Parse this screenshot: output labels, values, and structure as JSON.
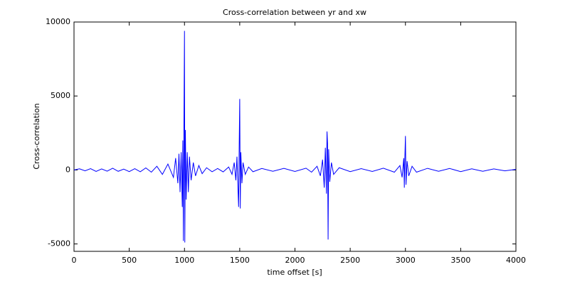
{
  "chart_data": {
    "type": "line",
    "title": "Cross-correlation between yr and xw",
    "x_label": "time offset [s]",
    "y_label": "Cross-correlation",
    "color": "#0000ff",
    "x": [
      0,
      50,
      100,
      150,
      200,
      250,
      300,
      350,
      400,
      450,
      500,
      550,
      600,
      650,
      700,
      750,
      800,
      850,
      900,
      920,
      940,
      950,
      960,
      970,
      980,
      985,
      990,
      995,
      1000,
      1003,
      1008,
      1015,
      1025,
      1035,
      1045,
      1060,
      1080,
      1100,
      1130,
      1160,
      1200,
      1250,
      1300,
      1350,
      1400,
      1430,
      1450,
      1465,
      1475,
      1485,
      1490,
      1495,
      1500,
      1505,
      1510,
      1520,
      1530,
      1550,
      1580,
      1620,
      1700,
      1800,
      1900,
      2000,
      2100,
      2150,
      2200,
      2230,
      2250,
      2265,
      2275,
      2285,
      2290,
      2295,
      2300,
      2305,
      2315,
      2330,
      2350,
      2400,
      2500,
      2600,
      2700,
      2800,
      2900,
      2950,
      2970,
      2985,
      2990,
      2995,
      3000,
      3005,
      3015,
      3030,
      3060,
      3100,
      3200,
      3300,
      3400,
      3500,
      3600,
      3700,
      3800,
      3900,
      4000
    ],
    "values": [
      0,
      80,
      -60,
      90,
      -100,
      70,
      -80,
      120,
      -90,
      60,
      -110,
      90,
      -120,
      140,
      -150,
      250,
      -300,
      400,
      -500,
      800,
      -900,
      1100,
      -1500,
      1200,
      -2500,
      2000,
      -4800,
      3000,
      9400,
      -4900,
      2700,
      -2000,
      1200,
      -1500,
      900,
      -700,
      500,
      -400,
      300,
      -250,
      150,
      -120,
      100,
      -130,
      200,
      -300,
      500,
      -700,
      900,
      -1500,
      -2500,
      1500,
      4800,
      -2600,
      1200,
      -900,
      500,
      -300,
      200,
      -120,
      100,
      -90,
      110,
      -100,
      120,
      -150,
      250,
      -400,
      700,
      -1200,
      1500,
      -1600,
      2600,
      1800,
      -4700,
      1400,
      -800,
      500,
      -300,
      150,
      -110,
      90,
      -100,
      120,
      -150,
      300,
      -500,
      800,
      -1200,
      900,
      2300,
      -1000,
      600,
      -400,
      250,
      -150,
      110,
      -90,
      100,
      -110,
      80,
      -90,
      70,
      -60,
      40
    ],
    "xlim": [
      0,
      4000
    ],
    "ylim": [
      -5500,
      10000
    ],
    "xticks": [
      0,
      500,
      1000,
      1500,
      2000,
      2500,
      3000,
      3500,
      4000
    ],
    "yticks": [
      -5000,
      0,
      5000,
      10000
    ]
  }
}
